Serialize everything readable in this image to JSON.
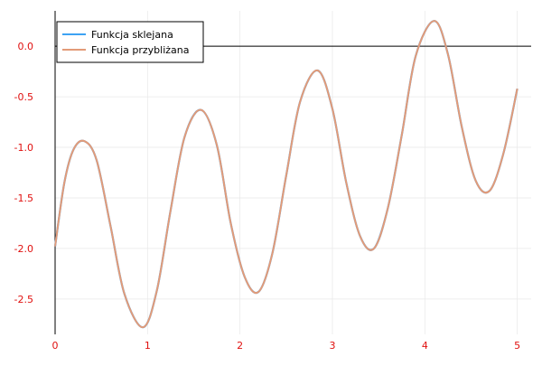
{
  "chart_data": {
    "type": "line",
    "title": "",
    "xlabel": "",
    "ylabel": "",
    "xlim": [
      0,
      5.15
    ],
    "ylim": [
      -2.85,
      0.35
    ],
    "x_ticks": [
      0,
      1,
      2,
      3,
      4,
      5
    ],
    "x_tick_labels": [
      "0",
      "1",
      "2",
      "3",
      "4",
      "5"
    ],
    "y_ticks": [
      0.0,
      -0.5,
      -1.0,
      -1.5,
      -2.0,
      -2.5
    ],
    "y_tick_labels": [
      "0.0",
      "-0.5",
      "-1.0",
      "-1.5",
      "-2.0",
      "-2.5"
    ],
    "grid": true,
    "legend_position": "top-left",
    "tick_label_color": "#e0100f",
    "series": [
      {
        "name": "Funkcja sklejana",
        "color": "#3da2f3",
        "x": [
          0,
          0.1,
          0.2,
          0.32,
          0.45,
          0.6,
          0.75,
          0.95,
          1.1,
          1.25,
          1.4,
          1.58,
          1.75,
          1.9,
          2.05,
          2.2,
          2.35,
          2.5,
          2.65,
          2.84,
          3.0,
          3.15,
          3.3,
          3.45,
          3.6,
          3.75,
          3.9,
          4.1,
          4.25,
          4.4,
          4.55,
          4.7,
          4.85,
          5.0
        ],
        "y": [
          -1.98,
          -1.35,
          -1.02,
          -0.94,
          -1.13,
          -1.78,
          -2.45,
          -2.78,
          -2.42,
          -1.62,
          -0.9,
          -0.63,
          -0.98,
          -1.75,
          -2.28,
          -2.43,
          -2.05,
          -1.28,
          -0.55,
          -0.24,
          -0.62,
          -1.35,
          -1.88,
          -2.0,
          -1.6,
          -0.88,
          -0.1,
          0.25,
          -0.08,
          -0.8,
          -1.33,
          -1.43,
          -1.06,
          -0.42
        ]
      },
      {
        "name": "Funkcja przybliżana",
        "color": "#e39b78",
        "x": [
          0,
          0.1,
          0.2,
          0.32,
          0.45,
          0.6,
          0.75,
          0.95,
          1.1,
          1.25,
          1.4,
          1.58,
          1.75,
          1.9,
          2.05,
          2.2,
          2.35,
          2.5,
          2.65,
          2.84,
          3.0,
          3.15,
          3.3,
          3.45,
          3.6,
          3.75,
          3.9,
          4.1,
          4.25,
          4.4,
          4.55,
          4.7,
          4.85,
          5.0
        ],
        "y": [
          -1.98,
          -1.35,
          -1.02,
          -0.94,
          -1.13,
          -1.78,
          -2.45,
          -2.78,
          -2.42,
          -1.62,
          -0.9,
          -0.63,
          -0.98,
          -1.75,
          -2.28,
          -2.43,
          -2.05,
          -1.28,
          -0.55,
          -0.24,
          -0.62,
          -1.35,
          -1.88,
          -2.0,
          -1.6,
          -0.88,
          -0.1,
          0.25,
          -0.08,
          -0.8,
          -1.33,
          -1.43,
          -1.06,
          -0.42
        ]
      }
    ]
  }
}
